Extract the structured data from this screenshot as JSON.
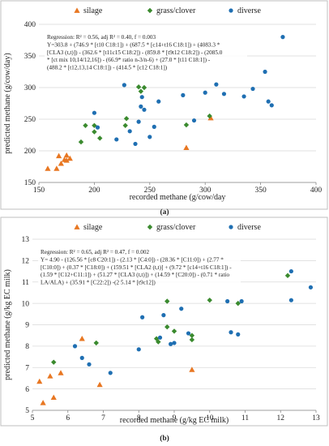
{
  "colors": {
    "silage": "#e87722",
    "grass_clover": "#3a8a2e",
    "diverse": "#1f6fb2"
  },
  "chart_data": [
    {
      "type": "scatter",
      "panel_label": "(a)",
      "xlabel": "recorded methane (g/cow/day",
      "ylabel": "predicted methane (g/cow/day)",
      "xlim": [
        150,
        400
      ],
      "ylim": [
        150,
        400
      ],
      "xticks": [
        150,
        200,
        250,
        300,
        350,
        400
      ],
      "yticks": [
        150,
        200,
        250,
        300,
        350,
        400
      ],
      "grid": "horizontal",
      "legend": {
        "position": "top",
        "entries": [
          "silage",
          "grass/clover",
          "diverse"
        ]
      },
      "annotation": [
        "Regression: R² = 0.56, adj R² = 0.40, f = 0.003",
        "Y=303.8 + (746.9 * [t10 C18:1]) + (687.5 * [c14+t16 C18:1]) + (4083.3 *",
        "[CLA3 (t,t)]) - (362.6 * [t11c15 C18:2]) - (859.8 * [t9t12 C18:2]) - (2085.0",
        "* [ct mix 10,14/12,16]) - (66.9* ratio n-3/n-6) + (27.0 * [t11 C18:1]) -",
        "(488.2 * [t12,13,14 C18:1]) - (414.5 * [c12 C18:1])"
      ],
      "series": [
        {
          "name": "silage",
          "marker": "triangle",
          "points": [
            [
              158,
              172
            ],
            [
              166,
              172
            ],
            [
              168,
              192
            ],
            [
              170,
              180
            ],
            [
              173,
              186
            ],
            [
              175,
              185
            ],
            [
              175,
              193
            ],
            [
              178,
              188
            ],
            [
              283,
              205
            ],
            [
              305,
              252
            ]
          ]
        },
        {
          "name": "grass/clover",
          "marker": "diamond",
          "points": [
            [
              188,
              214
            ],
            [
              192,
              240
            ],
            [
              200,
              230
            ],
            [
              200,
              240
            ],
            [
              205,
              220
            ],
            [
              228,
              240
            ],
            [
              229,
              251
            ],
            [
              240,
              301
            ],
            [
              242,
              294
            ],
            [
              245,
              300
            ],
            [
              283,
              241
            ],
            [
              304,
              255
            ]
          ]
        },
        {
          "name": "diverse",
          "marker": "circle",
          "points": [
            [
              200,
              260
            ],
            [
              203,
              237
            ],
            [
              220,
              218
            ],
            [
              227,
              304
            ],
            [
              232,
              231
            ],
            [
              237,
              211
            ],
            [
              240,
              246
            ],
            [
              242,
              270
            ],
            [
              243,
              285
            ],
            [
              245,
              265
            ],
            [
              250,
              222
            ],
            [
              254,
              238
            ],
            [
              258,
              278
            ],
            [
              280,
              288
            ],
            [
              290,
              248
            ],
            [
              300,
              292
            ],
            [
              310,
              305
            ],
            [
              317,
              290
            ],
            [
              335,
              286
            ],
            [
              343,
              298
            ],
            [
              354,
              325
            ],
            [
              357,
              278
            ],
            [
              360,
              272
            ],
            [
              370,
              380
            ]
          ]
        }
      ]
    },
    {
      "type": "scatter",
      "panel_label": "(b)",
      "xlabel": "recorded methane (g/kg EC milk)",
      "ylabel": "predicted methane (g/kg EC milk)",
      "xlim": [
        5,
        13
      ],
      "ylim": [
        5,
        13
      ],
      "xticks": [
        5,
        6,
        7,
        8,
        9,
        10,
        11,
        12,
        13
      ],
      "yticks": [
        5,
        6,
        7,
        8,
        9,
        10,
        11,
        12,
        13
      ],
      "grid": "horizontal",
      "legend": {
        "position": "top",
        "entries": [
          "silage",
          "grass/clover",
          "diverse"
        ]
      },
      "annotation": [
        "Regression: R² = 0.65, adj R² = 0.47, f = 0.002",
        "Y= 4.90 - (126.56 * [c8 C20:1]) - (2.13 * [C4:0]) - (28.36 * [C11:0]) + (2.77 *",
        "[C10:0]) + (0.37 * [C18:0]) + (159.51 * [CLA2 (t,t)] + (9.72 * [c14+t16 C18:1]) -",
        "(1.59 * [C12+C11:1]) + (51.27 * [CLA3 (t,t)]) + (14.59 * [C20:0]) - (0.71 * ratio",
        "LA/ALA) + (35.91 * [C22:2]) -(2 5.14 * [t9c12])"
      ],
      "series": [
        {
          "name": "silage",
          "marker": "triangle",
          "points": [
            [
              5.2,
              6.35
            ],
            [
              5.3,
              5.35
            ],
            [
              5.6,
              5.6
            ],
            [
              5.5,
              6.6
            ],
            [
              5.8,
              6.75
            ],
            [
              6.4,
              8.35
            ],
            [
              6.9,
              6.2
            ],
            [
              9.5,
              6.9
            ]
          ]
        },
        {
          "name": "grass/clover",
          "marker": "diamond",
          "points": [
            [
              5.6,
              7.25
            ],
            [
              6.8,
              8.15
            ],
            [
              8.5,
              8.35
            ],
            [
              8.55,
              8.2
            ],
            [
              8.8,
              8.9
            ],
            [
              9.0,
              8.7
            ],
            [
              9.5,
              8.3
            ],
            [
              9.5,
              8.5
            ],
            [
              10.0,
              10.15
            ],
            [
              10.8,
              10.0
            ],
            [
              12.2,
              11.3
            ],
            [
              8.8,
              10.1
            ]
          ]
        },
        {
          "name": "diverse",
          "marker": "circle",
          "points": [
            [
              6.2,
              8.0
            ],
            [
              6.4,
              7.45
            ],
            [
              6.6,
              7.15
            ],
            [
              7.2,
              6.75
            ],
            [
              8.0,
              7.85
            ],
            [
              8.1,
              9.35
            ],
            [
              8.6,
              8.4
            ],
            [
              8.7,
              9.45
            ],
            [
              8.9,
              8.1
            ],
            [
              9.0,
              8.15
            ],
            [
              9.2,
              9.75
            ],
            [
              9.4,
              8.6
            ],
            [
              10.5,
              10.1
            ],
            [
              10.9,
              10.1
            ],
            [
              10.6,
              8.65
            ],
            [
              10.8,
              8.55
            ],
            [
              12.3,
              10.15
            ],
            [
              12.3,
              11.5
            ],
            [
              12.85,
              10.75
            ]
          ]
        }
      ]
    }
  ]
}
